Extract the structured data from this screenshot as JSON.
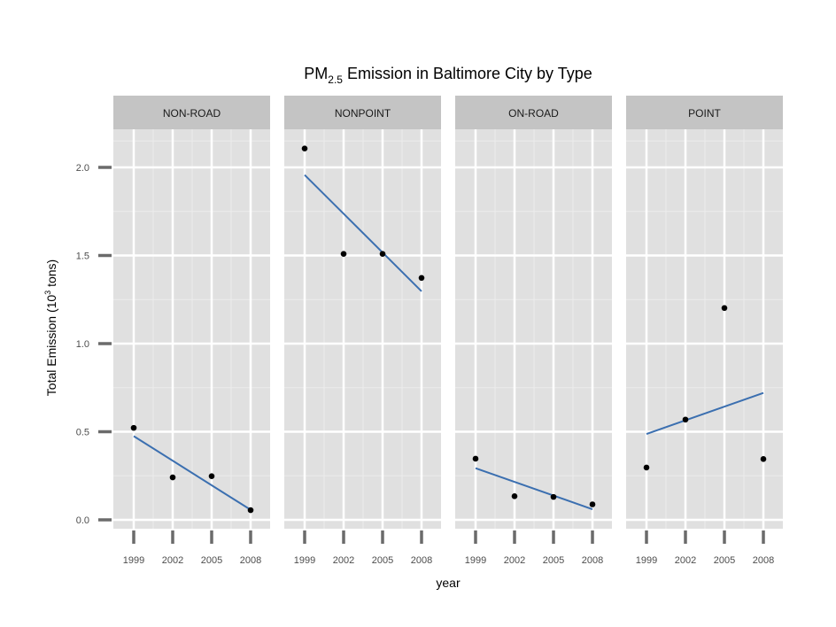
{
  "chart_data": {
    "type": "scatter",
    "title": "PM",
    "title_sub": "2.5",
    "title_rest": " Emission in Baltimore City by Type",
    "xlabel": "year",
    "ylabel_pre": "Total Emission (10",
    "ylabel_sup": "3",
    "ylabel_post": " tons)",
    "x_ticks": [
      "1999",
      "2002",
      "2005",
      "2008"
    ],
    "y_ticks": [
      "0.0",
      "0.5",
      "1.0",
      "1.5",
      "2.0"
    ],
    "xlim": [
      1998.4,
      2008.6
    ],
    "ylim": [
      -0.05,
      2.2
    ],
    "grid": true,
    "fit_line_color": "#3b6fb0",
    "point_color": "#000000",
    "panels": [
      {
        "name": "NON-ROAD",
        "x": [
          1999,
          2002,
          2005,
          2008
        ],
        "y": [
          0.522,
          0.241,
          0.248,
          0.055
        ],
        "fit": [
          0.475,
          0.057
        ]
      },
      {
        "name": "NONPOINT",
        "x": [
          1999,
          2002,
          2005,
          2008
        ],
        "y": [
          2.107,
          1.509,
          1.509,
          1.373
        ],
        "fit": [
          1.957,
          1.297
        ]
      },
      {
        "name": "ON-ROAD",
        "x": [
          1999,
          2002,
          2005,
          2008
        ],
        "y": [
          0.347,
          0.134,
          0.13,
          0.088
        ],
        "fit": [
          0.293,
          0.06
        ]
      },
      {
        "name": "POINT",
        "x": [
          1999,
          2002,
          2005,
          2008
        ],
        "y": [
          0.297,
          0.569,
          1.202,
          0.345
        ],
        "fit": [
          0.487,
          0.72
        ]
      }
    ]
  }
}
